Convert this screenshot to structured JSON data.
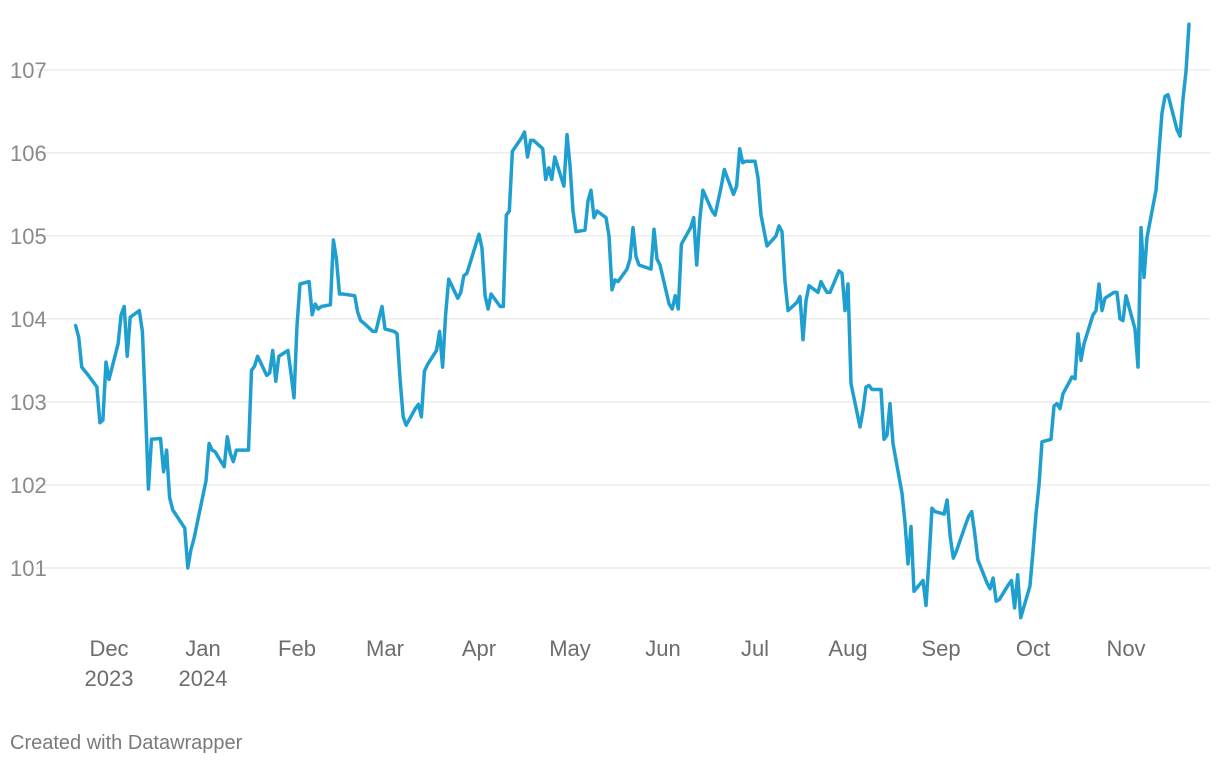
{
  "chart_data": {
    "type": "line",
    "title": "",
    "xlabel": "",
    "ylabel": "",
    "ylim": [
      100.35,
      107.6
    ],
    "grid": true,
    "y_ticks": [
      101,
      102,
      103,
      104,
      105,
      106,
      107
    ],
    "x_ticks": [
      {
        "label": "Dec",
        "sub": "2023",
        "date": "2023-12-01"
      },
      {
        "label": "Jan",
        "sub": "2024",
        "date": "2024-01-01"
      },
      {
        "label": "Feb",
        "sub": "",
        "date": "2024-02-01"
      },
      {
        "label": "Mar",
        "sub": "",
        "date": "2024-03-01"
      },
      {
        "label": "Apr",
        "sub": "",
        "date": "2024-04-01"
      },
      {
        "label": "May",
        "sub": "",
        "date": "2024-05-01"
      },
      {
        "label": "Jun",
        "sub": "",
        "date": "2024-06-01"
      },
      {
        "label": "Jul",
        "sub": "",
        "date": "2024-07-01"
      },
      {
        "label": "Aug",
        "sub": "",
        "date": "2024-08-01"
      },
      {
        "label": "Sep",
        "sub": "",
        "date": "2024-09-01"
      },
      {
        "label": "Oct",
        "sub": "",
        "date": "2024-10-01"
      },
      {
        "label": "Nov",
        "sub": "",
        "date": "2024-11-01"
      }
    ],
    "series": [
      {
        "color": "#1f9fcf",
        "points": [
          [
            "2023-11-20",
            103.92
          ],
          [
            "2023-11-21",
            103.78
          ],
          [
            "2023-11-22",
            103.42
          ],
          [
            "2023-11-24",
            103.33
          ],
          [
            "2023-11-27",
            103.18
          ],
          [
            "2023-11-28",
            102.75
          ],
          [
            "2023-11-29",
            102.78
          ],
          [
            "2023-11-30",
            103.48
          ],
          [
            "2023-12-01",
            103.27
          ],
          [
            "2023-12-04",
            103.7
          ],
          [
            "2023-12-05",
            104.05
          ],
          [
            "2023-12-06",
            104.15
          ],
          [
            "2023-12-07",
            103.55
          ],
          [
            "2023-12-08",
            104.02
          ],
          [
            "2023-12-11",
            104.1
          ],
          [
            "2023-12-12",
            103.85
          ],
          [
            "2023-12-13",
            102.95
          ],
          [
            "2023-12-14",
            101.95
          ],
          [
            "2023-12-15",
            102.55
          ],
          [
            "2023-12-18",
            102.56
          ],
          [
            "2023-12-19",
            102.16
          ],
          [
            "2023-12-20",
            102.42
          ],
          [
            "2023-12-21",
            101.85
          ],
          [
            "2023-12-22",
            101.7
          ],
          [
            "2023-12-26",
            101.48
          ],
          [
            "2023-12-27",
            101.0
          ],
          [
            "2023-12-28",
            101.22
          ],
          [
            "2023-12-29",
            101.35
          ],
          [
            "2024-01-02",
            102.05
          ],
          [
            "2024-01-03",
            102.5
          ],
          [
            "2024-01-04",
            102.42
          ],
          [
            "2024-01-05",
            102.4
          ],
          [
            "2024-01-08",
            102.22
          ],
          [
            "2024-01-09",
            102.58
          ],
          [
            "2024-01-10",
            102.38
          ],
          [
            "2024-01-11",
            102.28
          ],
          [
            "2024-01-12",
            102.42
          ],
          [
            "2024-01-16",
            102.42
          ],
          [
            "2024-01-17",
            103.38
          ],
          [
            "2024-01-18",
            103.43
          ],
          [
            "2024-01-19",
            103.55
          ],
          [
            "2024-01-22",
            103.32
          ],
          [
            "2024-01-23",
            103.35
          ],
          [
            "2024-01-24",
            103.62
          ],
          [
            "2024-01-25",
            103.25
          ],
          [
            "2024-01-26",
            103.55
          ],
          [
            "2024-01-29",
            103.62
          ],
          [
            "2024-01-30",
            103.35
          ],
          [
            "2024-01-31",
            103.05
          ],
          [
            "2024-02-01",
            103.92
          ],
          [
            "2024-02-02",
            104.42
          ],
          [
            "2024-02-05",
            104.45
          ],
          [
            "2024-02-06",
            104.05
          ],
          [
            "2024-02-07",
            104.18
          ],
          [
            "2024-02-08",
            104.12
          ],
          [
            "2024-02-09",
            104.15
          ],
          [
            "2024-02-12",
            104.17
          ],
          [
            "2024-02-13",
            104.95
          ],
          [
            "2024-02-14",
            104.72
          ],
          [
            "2024-02-15",
            104.3
          ],
          [
            "2024-02-16",
            104.3
          ],
          [
            "2024-02-20",
            104.28
          ],
          [
            "2024-02-21",
            104.08
          ],
          [
            "2024-02-22",
            103.98
          ],
          [
            "2024-02-23",
            103.95
          ],
          [
            "2024-02-26",
            103.85
          ],
          [
            "2024-02-27",
            103.85
          ],
          [
            "2024-02-28",
            104.0
          ],
          [
            "2024-02-29",
            104.15
          ],
          [
            "2024-03-01",
            103.88
          ],
          [
            "2024-03-04",
            103.85
          ],
          [
            "2024-03-05",
            103.82
          ],
          [
            "2024-03-06",
            103.25
          ],
          [
            "2024-03-07",
            102.82
          ],
          [
            "2024-03-08",
            102.72
          ],
          [
            "2024-03-11",
            102.92
          ],
          [
            "2024-03-12",
            102.97
          ],
          [
            "2024-03-13",
            102.82
          ],
          [
            "2024-03-14",
            103.37
          ],
          [
            "2024-03-15",
            103.45
          ],
          [
            "2024-03-18",
            103.62
          ],
          [
            "2024-03-19",
            103.85
          ],
          [
            "2024-03-20",
            103.42
          ],
          [
            "2024-03-21",
            104.05
          ],
          [
            "2024-03-22",
            104.48
          ],
          [
            "2024-03-25",
            104.25
          ],
          [
            "2024-03-26",
            104.32
          ],
          [
            "2024-03-27",
            104.52
          ],
          [
            "2024-03-28",
            104.55
          ],
          [
            "2024-04-01",
            105.02
          ],
          [
            "2024-04-02",
            104.85
          ],
          [
            "2024-04-03",
            104.28
          ],
          [
            "2024-04-04",
            104.12
          ],
          [
            "2024-04-05",
            104.3
          ],
          [
            "2024-04-08",
            104.15
          ],
          [
            "2024-04-09",
            104.15
          ],
          [
            "2024-04-10",
            105.25
          ],
          [
            "2024-04-11",
            105.3
          ],
          [
            "2024-04-12",
            106.02
          ],
          [
            "2024-04-15",
            106.18
          ],
          [
            "2024-04-16",
            106.25
          ],
          [
            "2024-04-17",
            105.95
          ],
          [
            "2024-04-18",
            106.15
          ],
          [
            "2024-04-19",
            106.15
          ],
          [
            "2024-04-22",
            106.05
          ],
          [
            "2024-04-23",
            105.68
          ],
          [
            "2024-04-24",
            105.82
          ],
          [
            "2024-04-25",
            105.68
          ],
          [
            "2024-04-26",
            105.95
          ],
          [
            "2024-04-29",
            105.6
          ],
          [
            "2024-04-30",
            106.22
          ],
          [
            "2024-05-01",
            105.85
          ],
          [
            "2024-05-02",
            105.3
          ],
          [
            "2024-05-03",
            105.05
          ],
          [
            "2024-05-06",
            105.07
          ],
          [
            "2024-05-07",
            105.42
          ],
          [
            "2024-05-08",
            105.55
          ],
          [
            "2024-05-09",
            105.22
          ],
          [
            "2024-05-10",
            105.3
          ],
          [
            "2024-05-13",
            105.22
          ],
          [
            "2024-05-14",
            105.0
          ],
          [
            "2024-05-15",
            104.35
          ],
          [
            "2024-05-16",
            104.47
          ],
          [
            "2024-05-17",
            104.45
          ],
          [
            "2024-05-20",
            104.6
          ],
          [
            "2024-05-21",
            104.72
          ],
          [
            "2024-05-22",
            105.1
          ],
          [
            "2024-05-23",
            104.75
          ],
          [
            "2024-05-24",
            104.65
          ],
          [
            "2024-05-28",
            104.6
          ],
          [
            "2024-05-29",
            105.08
          ],
          [
            "2024-05-30",
            104.72
          ],
          [
            "2024-05-31",
            104.65
          ],
          [
            "2024-06-03",
            104.18
          ],
          [
            "2024-06-04",
            104.12
          ],
          [
            "2024-06-05",
            104.28
          ],
          [
            "2024-06-06",
            104.12
          ],
          [
            "2024-06-07",
            104.9
          ],
          [
            "2024-06-10",
            105.1
          ],
          [
            "2024-06-11",
            105.22
          ],
          [
            "2024-06-12",
            104.65
          ],
          [
            "2024-06-13",
            105.2
          ],
          [
            "2024-06-14",
            105.55
          ],
          [
            "2024-06-17",
            105.3
          ],
          [
            "2024-06-18",
            105.25
          ],
          [
            "2024-06-20",
            105.6
          ],
          [
            "2024-06-21",
            105.8
          ],
          [
            "2024-06-24",
            105.5
          ],
          [
            "2024-06-25",
            105.6
          ],
          [
            "2024-06-26",
            106.05
          ],
          [
            "2024-06-27",
            105.88
          ],
          [
            "2024-06-28",
            105.9
          ],
          [
            "2024-07-01",
            105.9
          ],
          [
            "2024-07-02",
            105.7
          ],
          [
            "2024-07-03",
            105.25
          ],
          [
            "2024-07-05",
            104.88
          ],
          [
            "2024-07-08",
            105.0
          ],
          [
            "2024-07-09",
            105.12
          ],
          [
            "2024-07-10",
            105.05
          ],
          [
            "2024-07-11",
            104.45
          ],
          [
            "2024-07-12",
            104.1
          ],
          [
            "2024-07-15",
            104.2
          ],
          [
            "2024-07-16",
            104.27
          ],
          [
            "2024-07-17",
            103.75
          ],
          [
            "2024-07-18",
            104.22
          ],
          [
            "2024-07-19",
            104.4
          ],
          [
            "2024-07-22",
            104.32
          ],
          [
            "2024-07-23",
            104.45
          ],
          [
            "2024-07-24",
            104.38
          ],
          [
            "2024-07-25",
            104.32
          ],
          [
            "2024-07-26",
            104.32
          ],
          [
            "2024-07-29",
            104.58
          ],
          [
            "2024-07-30",
            104.55
          ],
          [
            "2024-07-31",
            104.1
          ],
          [
            "2024-08-01",
            104.42
          ],
          [
            "2024-08-02",
            103.22
          ],
          [
            "2024-08-05",
            102.7
          ],
          [
            "2024-08-06",
            102.9
          ],
          [
            "2024-08-07",
            103.18
          ],
          [
            "2024-08-08",
            103.2
          ],
          [
            "2024-08-09",
            103.15
          ],
          [
            "2024-08-12",
            103.15
          ],
          [
            "2024-08-13",
            102.55
          ],
          [
            "2024-08-14",
            102.6
          ],
          [
            "2024-08-15",
            102.98
          ],
          [
            "2024-08-16",
            102.5
          ],
          [
            "2024-08-19",
            101.9
          ],
          [
            "2024-08-20",
            101.55
          ],
          [
            "2024-08-21",
            101.05
          ],
          [
            "2024-08-22",
            101.5
          ],
          [
            "2024-08-23",
            100.72
          ],
          [
            "2024-08-26",
            100.85
          ],
          [
            "2024-08-27",
            100.55
          ],
          [
            "2024-08-28",
            101.1
          ],
          [
            "2024-08-29",
            101.72
          ],
          [
            "2024-08-30",
            101.68
          ],
          [
            "2024-09-02",
            101.65
          ],
          [
            "2024-09-03",
            101.82
          ],
          [
            "2024-09-04",
            101.38
          ],
          [
            "2024-09-05",
            101.12
          ],
          [
            "2024-09-06",
            101.2
          ],
          [
            "2024-09-09",
            101.52
          ],
          [
            "2024-09-10",
            101.62
          ],
          [
            "2024-09-11",
            101.68
          ],
          [
            "2024-09-12",
            101.42
          ],
          [
            "2024-09-13",
            101.1
          ],
          [
            "2024-09-16",
            100.82
          ],
          [
            "2024-09-17",
            100.75
          ],
          [
            "2024-09-18",
            100.88
          ],
          [
            "2024-09-19",
            100.6
          ],
          [
            "2024-09-20",
            100.62
          ],
          [
            "2024-09-23",
            100.8
          ],
          [
            "2024-09-24",
            100.85
          ],
          [
            "2024-09-25",
            100.52
          ],
          [
            "2024-09-26",
            100.92
          ],
          [
            "2024-09-27",
            100.4
          ],
          [
            "2024-09-30",
            100.78
          ],
          [
            "2024-10-01",
            101.2
          ],
          [
            "2024-10-02",
            101.65
          ],
          [
            "2024-10-03",
            102.0
          ],
          [
            "2024-10-04",
            102.52
          ],
          [
            "2024-10-07",
            102.55
          ],
          [
            "2024-10-08",
            102.95
          ],
          [
            "2024-10-09",
            102.98
          ],
          [
            "2024-10-10",
            102.92
          ],
          [
            "2024-10-11",
            103.1
          ],
          [
            "2024-10-14",
            103.3
          ],
          [
            "2024-10-15",
            103.28
          ],
          [
            "2024-10-16",
            103.82
          ],
          [
            "2024-10-17",
            103.5
          ],
          [
            "2024-10-18",
            103.7
          ],
          [
            "2024-10-21",
            104.05
          ],
          [
            "2024-10-22",
            104.1
          ],
          [
            "2024-10-23",
            104.42
          ],
          [
            "2024-10-24",
            104.1
          ],
          [
            "2024-10-25",
            104.25
          ],
          [
            "2024-10-28",
            104.32
          ],
          [
            "2024-10-29",
            104.32
          ],
          [
            "2024-10-30",
            104.0
          ],
          [
            "2024-10-31",
            103.98
          ],
          [
            "2024-11-01",
            104.28
          ],
          [
            "2024-11-04",
            103.88
          ],
          [
            "2024-11-05",
            103.42
          ],
          [
            "2024-11-06",
            105.1
          ],
          [
            "2024-11-07",
            104.5
          ],
          [
            "2024-11-08",
            104.98
          ],
          [
            "2024-11-11",
            105.55
          ],
          [
            "2024-11-12",
            106.02
          ],
          [
            "2024-11-13",
            106.48
          ],
          [
            "2024-11-14",
            106.68
          ],
          [
            "2024-11-15",
            106.7
          ],
          [
            "2024-11-18",
            106.28
          ],
          [
            "2024-11-19",
            106.2
          ],
          [
            "2024-11-20",
            106.65
          ],
          [
            "2024-11-21",
            106.98
          ],
          [
            "2024-11-22",
            107.55
          ]
        ]
      }
    ]
  },
  "footer": {
    "credit": "Created with Datawrapper"
  }
}
